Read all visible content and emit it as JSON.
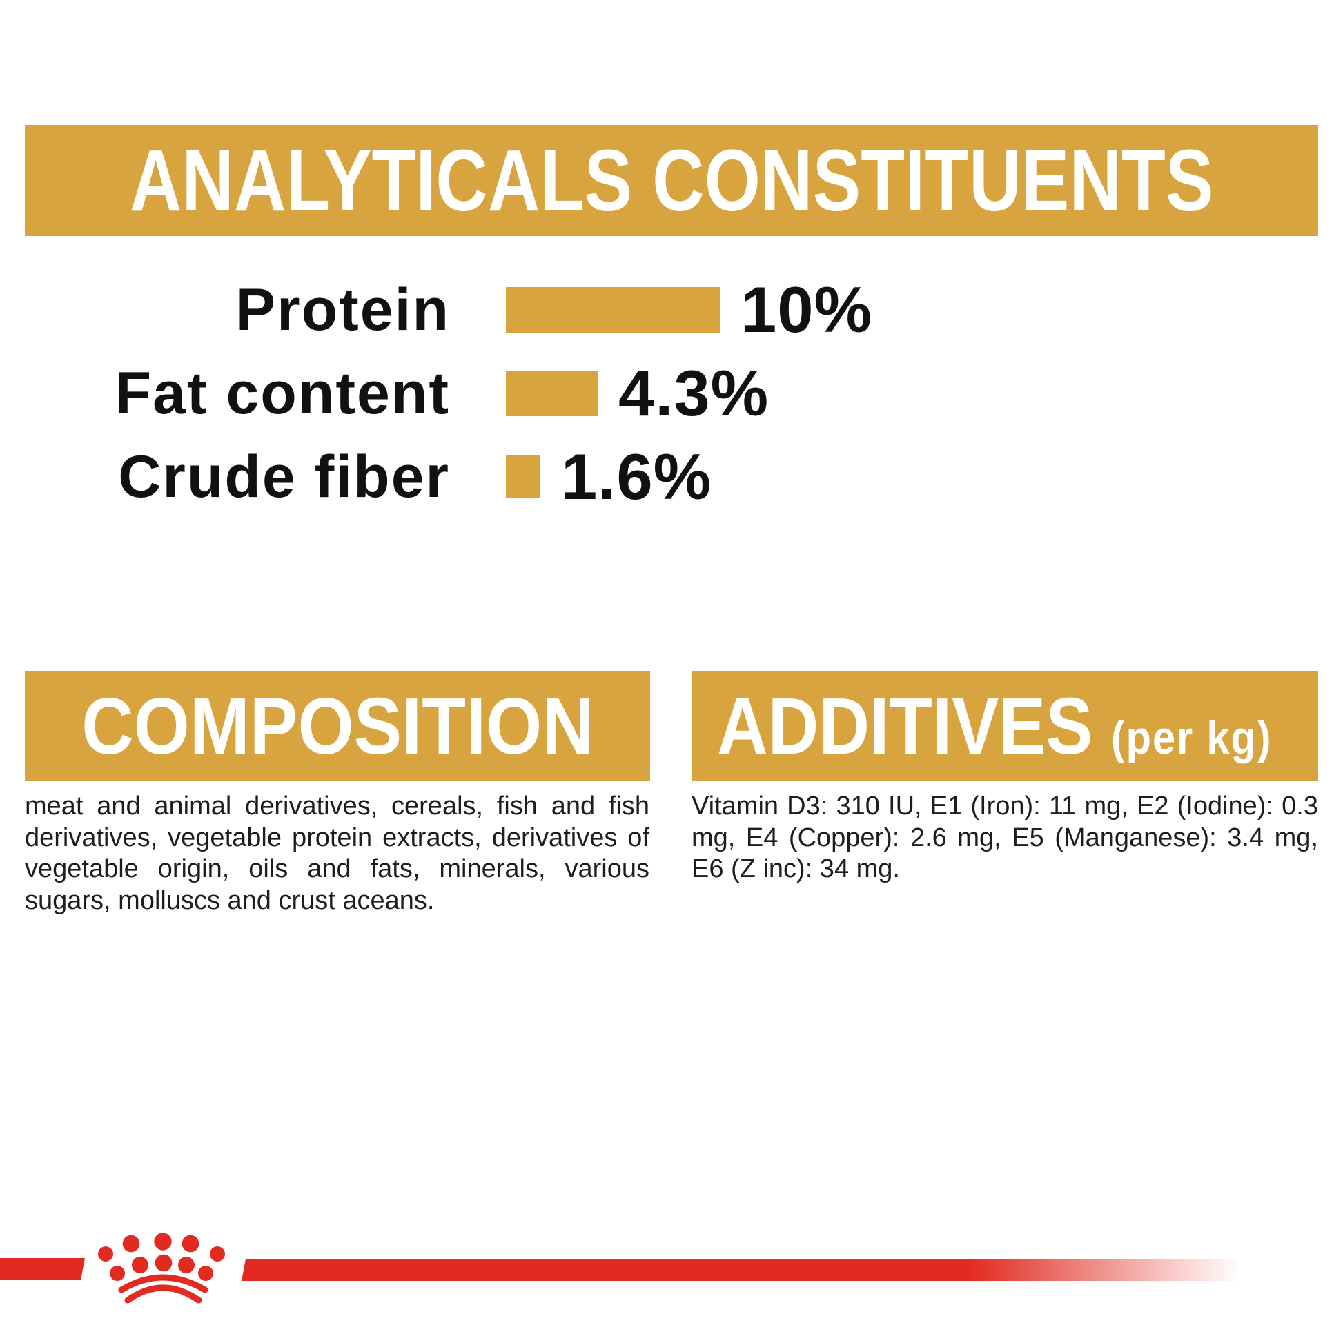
{
  "colors": {
    "gold": "#d8a440",
    "red": "#e12b20",
    "body_text": "#1d1d1b",
    "banner_text": "#ffffff"
  },
  "analyticals": {
    "title": "ANALYTICALS CONSTITUENTS"
  },
  "chart_data": {
    "type": "bar",
    "orientation": "horizontal",
    "title": "ANALYTICALS CONSTITUENTS",
    "categories": [
      "Protein",
      "Fat content",
      "Crude fiber"
    ],
    "values": [
      10,
      4.3,
      1.6
    ],
    "value_labels": [
      "10%",
      "4.3%",
      "1.6%"
    ],
    "unit": "%",
    "bar_color": "#d8a440",
    "axes_hidden": true,
    "grid": false
  },
  "composition": {
    "title": "COMPOSITION",
    "body": "meat and animal derivatives, cereals, fish and fish derivatives, vegetable protein extracts, derivatives of vegetable origin, oils and fats, minerals, various sugars, molluscs and crust aceans."
  },
  "additives": {
    "title": "ADDITIVES",
    "per_kg_label": "(per kg)",
    "body": "Vitamin D3: 310 IU, E1 (Iron): 11 mg, E2 (Iodine): 0.3 mg, E4 (Copper): 2.6 mg, E5 (Manganese): 3.4 mg, E6 (Z inc): 34 mg."
  },
  "logo": {
    "icon": "royal-canin-crown-icon",
    "color": "#e12b20"
  }
}
